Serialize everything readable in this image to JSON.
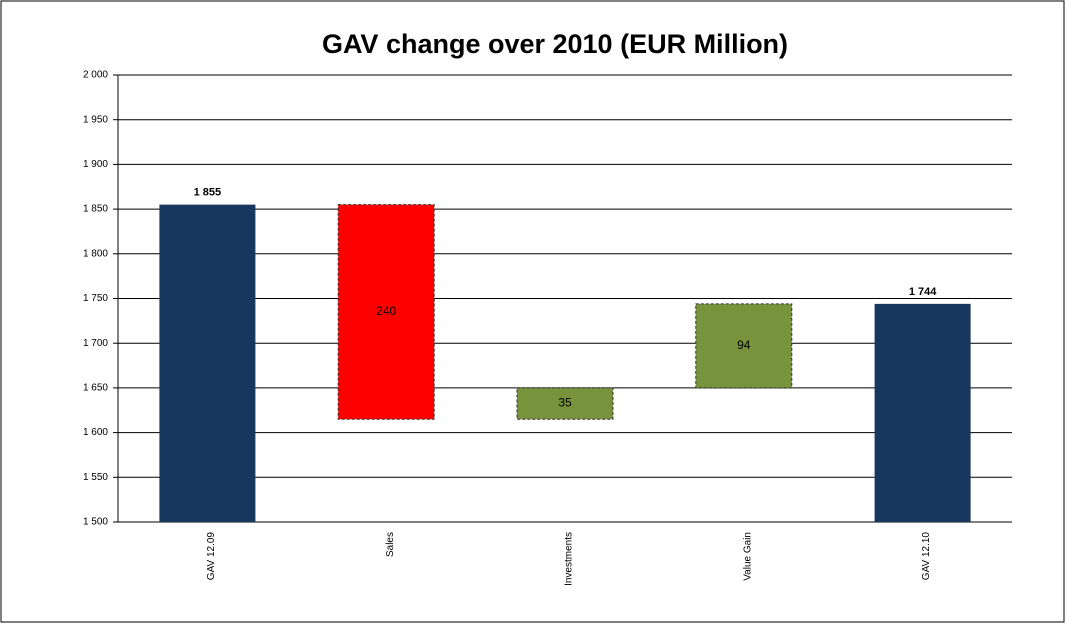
{
  "chart_data": {
    "type": "waterfall",
    "title": "GAV change over 2010 (EUR Million)",
    "categories": [
      "GAV 12.09",
      "Sales",
      "Investments",
      "Value Gain",
      "GAV 12.10"
    ],
    "values": [
      1855,
      -240,
      35,
      94,
      1744
    ],
    "value_labels": [
      "1 855",
      "240",
      "35",
      "94",
      "1 744"
    ],
    "measure": [
      "total",
      "relative",
      "relative",
      "relative",
      "total"
    ],
    "colors": [
      "#17375e",
      "#ff0000",
      "#77933c",
      "#77933c",
      "#17375e"
    ],
    "ylim": [
      1500,
      2000
    ],
    "yticks": [
      {
        "value": 1500,
        "label": "1 500"
      },
      {
        "value": 1550,
        "label": "1 550"
      },
      {
        "value": 1600,
        "label": "1 600"
      },
      {
        "value": 1650,
        "label": "1 650"
      },
      {
        "value": 1700,
        "label": "1 700"
      },
      {
        "value": 1750,
        "label": "1 750"
      },
      {
        "value": 1800,
        "label": "1 800"
      },
      {
        "value": 1850,
        "label": "1 850"
      },
      {
        "value": 1900,
        "label": "1 900"
      },
      {
        "value": 1950,
        "label": "1 950"
      },
      {
        "value": 2000,
        "label": "2 000"
      }
    ],
    "grid": true
  }
}
